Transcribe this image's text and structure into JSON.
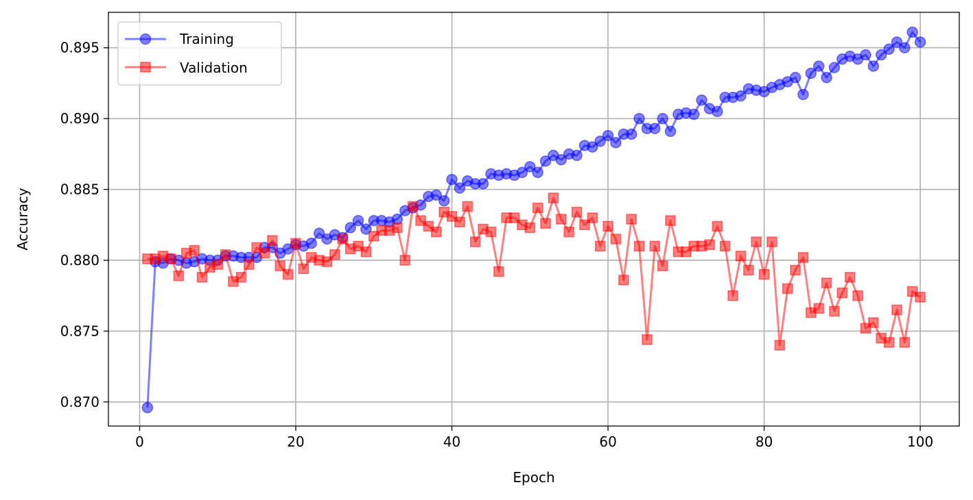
{
  "chart_data": {
    "type": "line",
    "xlabel": "Epoch",
    "ylabel": "Accuracy",
    "xlim": [
      -4,
      105
    ],
    "ylim": [
      0.8683,
      0.8975
    ],
    "xticks": [
      0,
      20,
      40,
      60,
      80,
      100
    ],
    "yticks": [
      0.87,
      0.875,
      0.88,
      0.885,
      0.89,
      0.895
    ],
    "xtick_labels": [
      "0",
      "20",
      "40",
      "60",
      "80",
      "100"
    ],
    "ytick_labels": [
      "0.870",
      "0.875",
      "0.880",
      "0.885",
      "0.890",
      "0.895"
    ],
    "grid": true,
    "legend_position": "upper-left",
    "series": [
      {
        "name": "Training",
        "color": "#0000ff",
        "marker": "circle",
        "x": [
          1,
          2,
          3,
          4,
          5,
          6,
          7,
          8,
          9,
          10,
          11,
          12,
          13,
          14,
          15,
          16,
          17,
          18,
          19,
          20,
          21,
          22,
          23,
          24,
          25,
          26,
          27,
          28,
          29,
          30,
          31,
          32,
          33,
          34,
          35,
          36,
          37,
          38,
          39,
          40,
          41,
          42,
          43,
          44,
          45,
          46,
          47,
          48,
          49,
          50,
          51,
          52,
          53,
          54,
          55,
          56,
          57,
          58,
          59,
          60,
          61,
          62,
          63,
          64,
          65,
          66,
          67,
          68,
          69,
          70,
          71,
          72,
          73,
          74,
          75,
          76,
          77,
          78,
          79,
          80,
          81,
          82,
          83,
          84,
          85,
          86,
          87,
          88,
          89,
          90,
          91,
          92,
          93,
          94,
          95,
          96,
          97,
          98,
          99,
          100
        ],
        "values": [
          0.8696,
          0.8799,
          0.8798,
          0.8801,
          0.88,
          0.8798,
          0.8799,
          0.8801,
          0.88,
          0.88,
          0.8803,
          0.8803,
          0.8802,
          0.8802,
          0.8802,
          0.8809,
          0.8809,
          0.8805,
          0.8808,
          0.8811,
          0.881,
          0.8812,
          0.8819,
          0.8815,
          0.8818,
          0.8816,
          0.8823,
          0.8828,
          0.8822,
          0.8828,
          0.8828,
          0.8827,
          0.8829,
          0.8835,
          0.8837,
          0.8839,
          0.8845,
          0.8846,
          0.8842,
          0.8857,
          0.8851,
          0.8856,
          0.8854,
          0.8854,
          0.8861,
          0.886,
          0.8861,
          0.886,
          0.8862,
          0.8866,
          0.8862,
          0.887,
          0.8874,
          0.8871,
          0.8875,
          0.8874,
          0.8881,
          0.888,
          0.8884,
          0.8888,
          0.8883,
          0.8889,
          0.8889,
          0.89,
          0.8893,
          0.8893,
          0.89,
          0.8891,
          0.8903,
          0.8904,
          0.8903,
          0.8913,
          0.8907,
          0.8905,
          0.8915,
          0.8915,
          0.8916,
          0.8921,
          0.892,
          0.8919,
          0.8922,
          0.8924,
          0.8926,
          0.8929,
          0.8917,
          0.8932,
          0.8937,
          0.8929,
          0.8936,
          0.8942,
          0.8944,
          0.8942,
          0.8945,
          0.8937,
          0.8945,
          0.8949,
          0.8954,
          0.895,
          0.8961,
          0.8954
        ]
      },
      {
        "name": "Validation",
        "color": "#ff0000",
        "marker": "square",
        "x": [
          1,
          2,
          3,
          4,
          5,
          6,
          7,
          8,
          9,
          10,
          11,
          12,
          13,
          14,
          15,
          16,
          17,
          18,
          19,
          20,
          21,
          22,
          23,
          24,
          25,
          26,
          27,
          28,
          29,
          30,
          31,
          32,
          33,
          34,
          35,
          36,
          37,
          38,
          39,
          40,
          41,
          42,
          43,
          44,
          45,
          46,
          47,
          48,
          49,
          50,
          51,
          52,
          53,
          54,
          55,
          56,
          57,
          58,
          59,
          60,
          61,
          62,
          63,
          64,
          65,
          66,
          67,
          68,
          69,
          70,
          71,
          72,
          73,
          74,
          75,
          76,
          77,
          78,
          79,
          80,
          81,
          82,
          83,
          84,
          85,
          86,
          87,
          88,
          89,
          90,
          91,
          92,
          93,
          94,
          95,
          96,
          97,
          98,
          99,
          100
        ],
        "values": [
          0.8801,
          0.8801,
          0.8803,
          0.8801,
          0.8789,
          0.8805,
          0.8807,
          0.8788,
          0.8795,
          0.8797,
          0.8804,
          0.8785,
          0.8788,
          0.8797,
          0.8809,
          0.8805,
          0.8814,
          0.8796,
          0.879,
          0.8812,
          0.8794,
          0.8802,
          0.88,
          0.8799,
          0.8804,
          0.8815,
          0.8808,
          0.881,
          0.8806,
          0.8817,
          0.8821,
          0.8821,
          0.8823,
          0.88,
          0.8838,
          0.8828,
          0.8824,
          0.882,
          0.8834,
          0.8831,
          0.8827,
          0.8838,
          0.8813,
          0.8822,
          0.882,
          0.8792,
          0.883,
          0.883,
          0.8825,
          0.8823,
          0.8837,
          0.8826,
          0.8844,
          0.8829,
          0.882,
          0.8834,
          0.8825,
          0.883,
          0.881,
          0.8824,
          0.8815,
          0.8786,
          0.8829,
          0.881,
          0.8744,
          0.881,
          0.8796,
          0.8828,
          0.8806,
          0.8806,
          0.881,
          0.881,
          0.8811,
          0.8824,
          0.881,
          0.8775,
          0.8803,
          0.8793,
          0.8813,
          0.879,
          0.8813,
          0.874,
          0.878,
          0.8793,
          0.8802,
          0.8763,
          0.8766,
          0.8784,
          0.8764,
          0.8777,
          0.8788,
          0.8775,
          0.8752,
          0.8756,
          0.8745,
          0.8742,
          0.8765,
          0.8742,
          0.8778,
          0.8774
        ]
      }
    ]
  }
}
